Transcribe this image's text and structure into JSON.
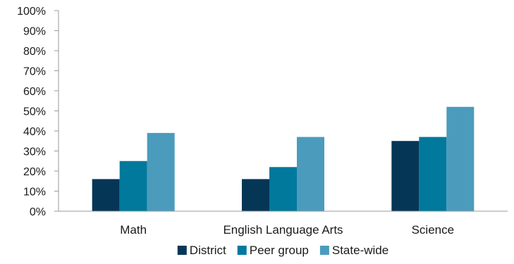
{
  "chart_data": {
    "type": "bar",
    "categories": [
      "Math",
      "English Language Arts",
      "Science"
    ],
    "series": [
      {
        "name": "District",
        "values": [
          16,
          16,
          35
        ],
        "color": "#063656"
      },
      {
        "name": "Peer group",
        "values": [
          25,
          22,
          37
        ],
        "color": "#00799c"
      },
      {
        "name": "State-wide",
        "values": [
          39,
          37,
          52
        ],
        "color": "#4b9bbd"
      }
    ],
    "ylim": [
      0,
      100
    ],
    "y_ticks": [
      "0%",
      "10%",
      "20%",
      "30%",
      "40%",
      "50%",
      "60%",
      "70%",
      "80%",
      "90%",
      "100%"
    ],
    "grid": false,
    "legend_position": "bottom"
  }
}
